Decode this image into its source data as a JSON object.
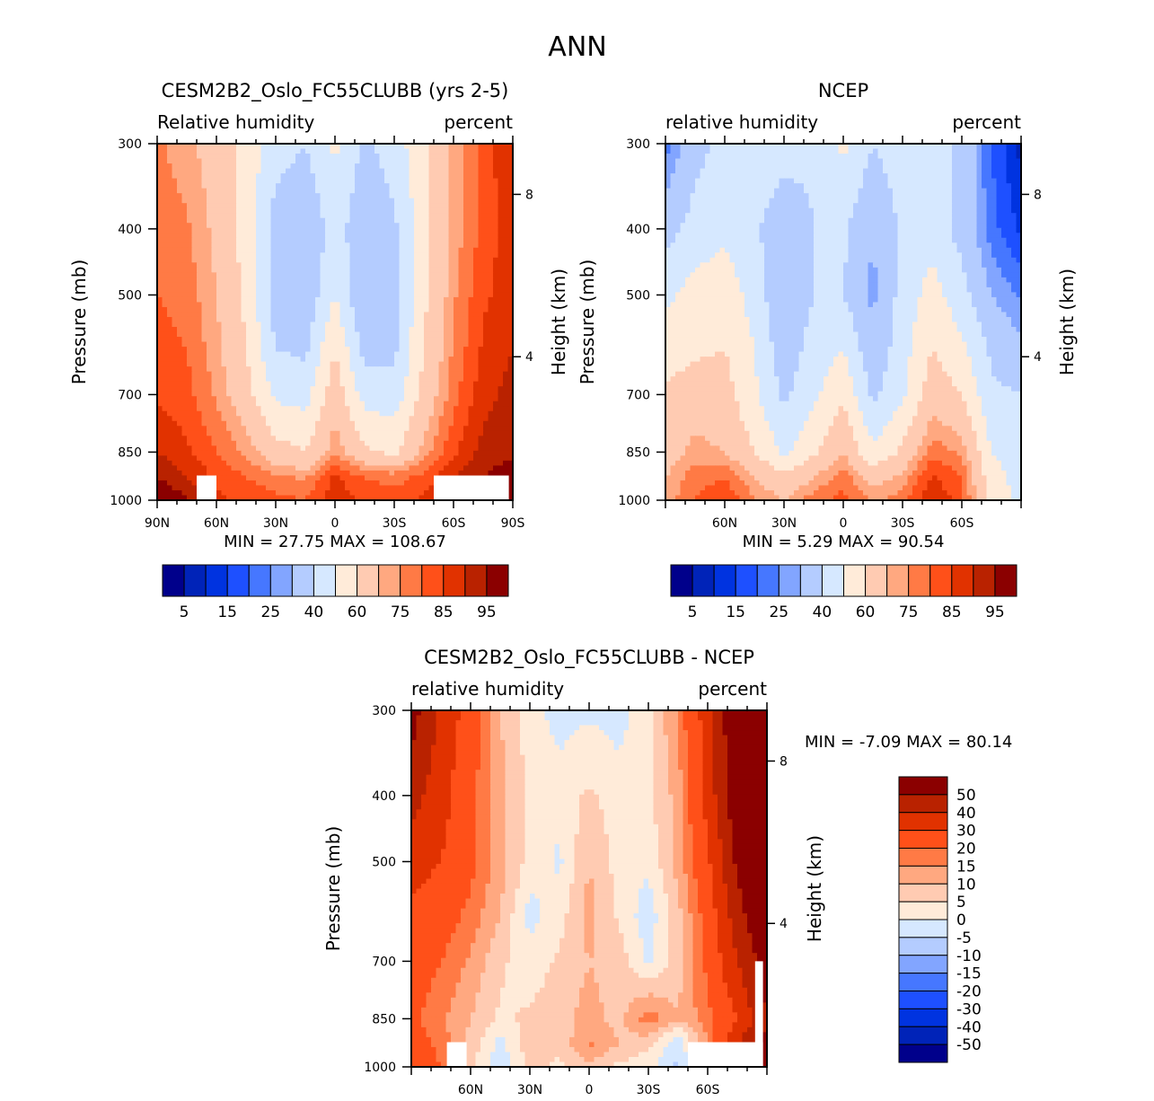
{
  "page_title": "ANN",
  "palette": {
    "cmap": [
      "#00008b",
      "#0023b8",
      "#0033e0",
      "#1e50ff",
      "#4677ff",
      "#82a5ff",
      "#b4ccff",
      "#d6e8ff",
      "#ffebd9",
      "#ffcbb2",
      "#ffa880",
      "#ff7a45",
      "#ff5019",
      "#e13200",
      "#b92200",
      "#8b0000"
    ]
  },
  "chart_data": [
    {
      "id": "model",
      "type": "heatmap",
      "title": "CESM2B2_Oslo_FC55CLUBB (yrs 2-5)",
      "left_string": "Relative humidity",
      "right_string": "percent",
      "xlabel": "",
      "ylabel": "Pressure (mb)",
      "y2label": "Height (km)",
      "x_ticks": [
        "90N",
        "60N",
        "30N",
        "0",
        "30S",
        "60S",
        "90S"
      ],
      "x_tick_values": [
        90,
        60,
        30,
        0,
        -30,
        -60,
        -90
      ],
      "y_ticks": [
        300,
        400,
        500,
        700,
        850,
        1000
      ],
      "y2_ticks": [
        8,
        4
      ],
      "xlim": [
        90,
        -90
      ],
      "ylim": [
        300,
        1000
      ],
      "stats": "MIN =   27.75   MAX = 108.67",
      "min": 27.75,
      "max": 108.67,
      "colorbar_labels": [
        "5",
        "15",
        "25",
        "40",
        "60",
        "75",
        "85",
        "95"
      ],
      "levels": [
        5,
        10,
        15,
        20,
        25,
        30,
        40,
        50,
        60,
        70,
        75,
        80,
        85,
        90,
        95
      ],
      "field": {
        "lat": [
          90,
          75,
          60,
          45,
          30,
          15,
          0,
          -15,
          -30,
          -45,
          -60,
          -75,
          -90
        ],
        "lev": [
          300,
          400,
          500,
          600,
          700,
          850,
          925,
          1000
        ],
        "values": [
          [
            76,
            72,
            66,
            56,
            45,
            40,
            52,
            38,
            45,
            58,
            72,
            82,
            90
          ],
          [
            78,
            76,
            68,
            56,
            35,
            30,
            45,
            32,
            38,
            56,
            72,
            82,
            88
          ],
          [
            80,
            78,
            70,
            58,
            34,
            32,
            50,
            30,
            36,
            58,
            74,
            84,
            88
          ],
          [
            82,
            80,
            72,
            60,
            40,
            38,
            60,
            36,
            38,
            60,
            76,
            86,
            90
          ],
          [
            84,
            82,
            74,
            64,
            48,
            46,
            66,
            46,
            44,
            64,
            78,
            88,
            92
          ],
          [
            90,
            86,
            80,
            74,
            64,
            60,
            74,
            62,
            58,
            72,
            84,
            92,
            94
          ],
          [
            95,
            90,
            84,
            80,
            76,
            74,
            86,
            80,
            78,
            82,
            90,
            95,
            98
          ],
          [
            100,
            96,
            86,
            84,
            82,
            80,
            88,
            84,
            82,
            86,
            92,
            97,
            99
          ]
        ],
        "missing_boxes": [
          {
            "lat": [
              70,
              60
            ],
            "lev": [
              920,
              1000
            ]
          },
          {
            "lat": [
              -50,
              -88
            ],
            "lev": [
              920,
              1000
            ]
          }
        ]
      }
    },
    {
      "id": "obs",
      "type": "heatmap",
      "title": "NCEP",
      "left_string": "relative humidity",
      "right_string": "percent",
      "xlabel": "",
      "ylabel": "Pressure (mb)",
      "y2label": "Height (km)",
      "x_ticks": [
        "60N",
        "30N",
        "0",
        "30S",
        "60S"
      ],
      "x_tick_values": [
        60,
        30,
        0,
        -30,
        -60
      ],
      "y_ticks": [
        300,
        400,
        500,
        700,
        850,
        1000
      ],
      "y2_ticks": [
        8,
        4
      ],
      "xlim": [
        90,
        -90
      ],
      "ylim": [
        300,
        1000
      ],
      "stats": "MIN =    5.29   MAX =   90.54",
      "min": 5.29,
      "max": 90.54,
      "colorbar_labels": [
        "5",
        "15",
        "25",
        "40",
        "60",
        "75",
        "85",
        "95"
      ],
      "levels": [
        5,
        10,
        15,
        20,
        25,
        30,
        40,
        50,
        60,
        70,
        75,
        80,
        85,
        90,
        95
      ],
      "field": {
        "lat": [
          90,
          75,
          60,
          45,
          30,
          15,
          0,
          -15,
          -30,
          -45,
          -60,
          -75,
          -90
        ],
        "lev": [
          300,
          400,
          500,
          600,
          700,
          850,
          925,
          1000
        ],
        "values": [
          [
            22,
            36,
            44,
            48,
            45,
            42,
            52,
            40,
            46,
            46,
            38,
            20,
            8
          ],
          [
            36,
            44,
            48,
            42,
            32,
            40,
            42,
            30,
            42,
            46,
            36,
            22,
            14
          ],
          [
            48,
            54,
            56,
            46,
            30,
            40,
            40,
            28,
            44,
            54,
            44,
            30,
            24
          ],
          [
            54,
            58,
            60,
            50,
            34,
            44,
            50,
            32,
            46,
            60,
            52,
            38,
            32
          ],
          [
            62,
            66,
            64,
            52,
            38,
            48,
            58,
            38,
            48,
            66,
            60,
            42,
            40
          ],
          [
            66,
            72,
            70,
            60,
            48,
            58,
            70,
            52,
            62,
            78,
            74,
            50,
            44
          ],
          [
            70,
            78,
            80,
            70,
            62,
            70,
            78,
            66,
            72,
            86,
            80,
            54,
            46
          ],
          [
            72,
            80,
            84,
            76,
            70,
            78,
            82,
            74,
            78,
            90,
            82,
            56,
            48
          ]
        ]
      }
    },
    {
      "id": "diff",
      "type": "heatmap",
      "title": "CESM2B2_Oslo_FC55CLUBB - NCEP",
      "left_string": "relative humidity",
      "right_string": "percent",
      "xlabel": "",
      "ylabel": "Pressure (mb)",
      "y2label": "Height (km)",
      "x_ticks": [
        "60N",
        "30N",
        "0",
        "30S",
        "60S"
      ],
      "x_tick_values": [
        60,
        30,
        0,
        -30,
        -60
      ],
      "y_ticks": [
        300,
        400,
        500,
        700,
        850,
        1000
      ],
      "y2_ticks": [
        8,
        4
      ],
      "xlim": [
        90,
        -90
      ],
      "ylim": [
        300,
        1000
      ],
      "stats": "MIN =   -7.09   MAX =   80.14",
      "min": -7.09,
      "max": 80.14,
      "colorbar_labels": [
        "50",
        "40",
        "30",
        "20",
        "15",
        "10",
        "5",
        "0",
        "-5",
        "-10",
        "-15",
        "-20",
        "-30",
        "-40",
        "-50"
      ],
      "levels": [
        -50,
        -40,
        -30,
        -20,
        -15,
        -10,
        -5,
        0,
        5,
        10,
        15,
        20,
        30,
        40,
        50
      ],
      "field": {
        "lat": [
          90,
          75,
          60,
          45,
          30,
          15,
          0,
          -15,
          -30,
          -45,
          -60,
          -75,
          -90
        ],
        "lev": [
          300,
          400,
          500,
          600,
          700,
          850,
          925,
          1000
        ],
        "values": [
          [
            55,
            38,
            25,
            10,
            2,
            -2,
            -1,
            -2,
            3,
            16,
            35,
            62,
            80
          ],
          [
            44,
            34,
            22,
            12,
            4,
            2,
            6,
            2,
            4,
            12,
            34,
            58,
            74
          ],
          [
            34,
            30,
            22,
            12,
            3,
            -1,
            10,
            3,
            1,
            12,
            28,
            52,
            66
          ],
          [
            28,
            24,
            18,
            10,
            -2,
            3,
            12,
            4,
            -3,
            8,
            24,
            46,
            60
          ],
          [
            24,
            20,
            14,
            6,
            2,
            6,
            10,
            8,
            -1,
            8,
            22,
            40,
            56
          ],
          [
            22,
            16,
            10,
            4,
            6,
            8,
            12,
            8,
            18,
            10,
            18,
            30,
            50
          ],
          [
            24,
            18,
            8,
            -2,
            8,
            6,
            16,
            10,
            6,
            -4,
            14,
            40,
            52
          ],
          [
            28,
            20,
            6,
            -3,
            6,
            4,
            8,
            4,
            2,
            -6,
            12,
            42,
            52
          ]
        ],
        "missing_boxes": [
          {
            "lat": [
              72,
              62
            ],
            "lev": [
              920,
              1000
            ]
          },
          {
            "lat": [
              -50,
              -88
            ],
            "lev": [
              920,
              1000
            ]
          },
          {
            "lat": [
              -84,
              -88
            ],
            "lev": [
              700,
              1000
            ]
          }
        ]
      }
    }
  ]
}
